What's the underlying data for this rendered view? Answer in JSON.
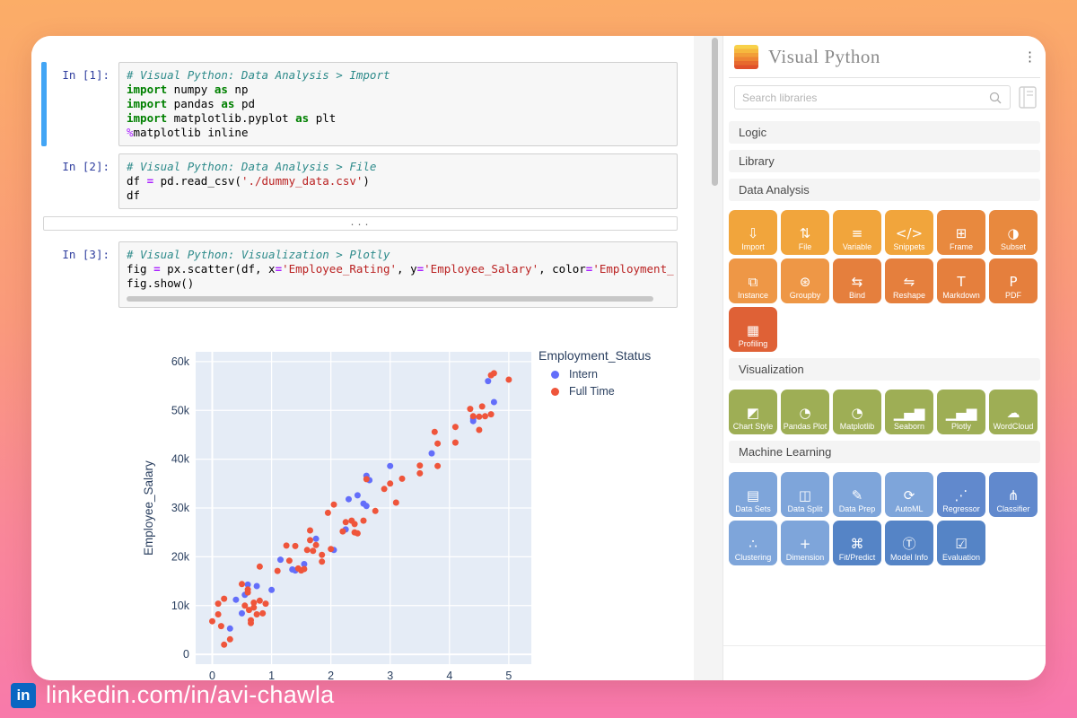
{
  "colors": {
    "background_top": "#FBAD67",
    "background_bottom": "#F877AE",
    "selected_cell_bar": "#42A5F5",
    "linkedin_blue": "#0A66C2",
    "plot_background": "#E5ECF6",
    "intern_blue": "#636EFA",
    "fulltime_red": "#EF553B",
    "plot_text": "#2A3F5F"
  },
  "notebook": {
    "collapsed_output": "...",
    "cells": [
      {
        "prompt": "In [1]:",
        "selected": true,
        "hscroll": false,
        "ellipsis_after": false,
        "lines": [
          [
            [
              "com",
              "# Visual Python: Data Analysis > Import"
            ]
          ],
          [
            [
              "kw",
              "import"
            ],
            [
              "pl",
              " numpy "
            ],
            [
              "kw",
              "as"
            ],
            [
              "pl",
              " np"
            ]
          ],
          [
            [
              "kw",
              "import"
            ],
            [
              "pl",
              " pandas "
            ],
            [
              "kw",
              "as"
            ],
            [
              "pl",
              " pd"
            ]
          ],
          [
            [
              "kw",
              "import"
            ],
            [
              "pl",
              " matplotlib.pyplot "
            ],
            [
              "kw",
              "as"
            ],
            [
              "pl",
              " plt"
            ]
          ],
          [
            [
              "mg",
              "%"
            ],
            [
              "pl",
              "matplotlib inline"
            ]
          ]
        ]
      },
      {
        "prompt": "In [2]:",
        "selected": false,
        "hscroll": false,
        "ellipsis_after": true,
        "lines": [
          [
            [
              "com",
              "# Visual Python: Data Analysis > File"
            ]
          ],
          [
            [
              "pl",
              "df "
            ],
            [
              "op",
              "="
            ],
            [
              "pl",
              " pd.read_csv("
            ],
            [
              "str",
              "'./dummy_data.csv'"
            ],
            [
              "pl",
              ")"
            ]
          ],
          [
            [
              "pl",
              "df"
            ]
          ]
        ]
      },
      {
        "prompt": "In [3]:",
        "selected": false,
        "hscroll": true,
        "ellipsis_after": false,
        "lines": [
          [
            [
              "com",
              "# Visual Python: Visualization > Plotly"
            ]
          ],
          [
            [
              "pl",
              "fig "
            ],
            [
              "op",
              "="
            ],
            [
              "pl",
              " px.scatter(df, x"
            ],
            [
              "op",
              "="
            ],
            [
              "str",
              "'Employee_Rating'"
            ],
            [
              "pl",
              ", y"
            ],
            [
              "op",
              "="
            ],
            [
              "str",
              "'Employee_Salary'"
            ],
            [
              "pl",
              ", color"
            ],
            [
              "op",
              "="
            ],
            [
              "str",
              "'Employment_"
            ]
          ],
          [
            [
              "pl",
              "fig.show()"
            ]
          ]
        ]
      }
    ]
  },
  "chart_data": {
    "type": "scatter",
    "title": "",
    "xlabel": "",
    "ylabel": "Employee_Salary",
    "legend_title": "Employment_Status",
    "legend_position": "top-right-outside",
    "grid": true,
    "y_unit": "thousands",
    "xlim": [
      -0.28,
      5.38
    ],
    "ylim_k": [
      -2,
      62
    ],
    "xticks": [
      0,
      1,
      2,
      3,
      4,
      5
    ],
    "yticks_k": [
      0,
      10,
      20,
      30,
      40,
      50,
      60
    ],
    "ytick_labels": [
      "0",
      "10k",
      "20k",
      "30k",
      "40k",
      "50k",
      "60k"
    ],
    "series": [
      {
        "name": "Intern",
        "color": "#636EFA",
        "points_x_yk": [
          [
            0.3,
            5.3
          ],
          [
            0.4,
            11.2
          ],
          [
            0.5,
            8.4
          ],
          [
            0.55,
            12.2
          ],
          [
            0.6,
            14.3
          ],
          [
            0.75,
            14.0
          ],
          [
            1.0,
            13.2
          ],
          [
            1.15,
            19.4
          ],
          [
            1.35,
            17.4
          ],
          [
            1.4,
            17.2
          ],
          [
            1.55,
            18.5
          ],
          [
            1.75,
            23.7
          ],
          [
            2.05,
            21.4
          ],
          [
            2.25,
            25.6
          ],
          [
            2.3,
            31.8
          ],
          [
            2.45,
            32.6
          ],
          [
            2.55,
            30.9
          ],
          [
            2.6,
            30.4
          ],
          [
            2.6,
            36.6
          ],
          [
            2.65,
            35.7
          ],
          [
            3.0,
            38.6
          ],
          [
            3.7,
            41.2
          ],
          [
            4.4,
            48.3
          ],
          [
            4.4,
            47.8
          ],
          [
            4.65,
            56.0
          ],
          [
            4.75,
            51.7
          ]
        ]
      },
      {
        "name": "Full Time",
        "color": "#EF553B",
        "points_x_yk": [
          [
            0.0,
            6.8
          ],
          [
            0.1,
            8.2
          ],
          [
            0.1,
            10.4
          ],
          [
            0.15,
            5.8
          ],
          [
            0.2,
            11.4
          ],
          [
            0.2,
            2.0
          ],
          [
            0.3,
            3.1
          ],
          [
            0.5,
            14.4
          ],
          [
            0.55,
            10.0
          ],
          [
            0.6,
            13.3
          ],
          [
            0.6,
            12.7
          ],
          [
            0.62,
            9.1
          ],
          [
            0.65,
            7.0
          ],
          [
            0.65,
            6.4
          ],
          [
            0.7,
            10.6
          ],
          [
            0.7,
            9.6
          ],
          [
            0.75,
            8.2
          ],
          [
            0.8,
            18.0
          ],
          [
            0.8,
            11.0
          ],
          [
            0.85,
            8.4
          ],
          [
            0.9,
            10.4
          ],
          [
            1.1,
            17.1
          ],
          [
            1.25,
            22.3
          ],
          [
            1.3,
            19.2
          ],
          [
            1.4,
            22.2
          ],
          [
            1.45,
            17.6
          ],
          [
            1.5,
            17.2
          ],
          [
            1.55,
            17.5
          ],
          [
            1.6,
            21.4
          ],
          [
            1.65,
            25.4
          ],
          [
            1.65,
            23.4
          ],
          [
            1.7,
            21.2
          ],
          [
            1.75,
            22.4
          ],
          [
            1.85,
            20.4
          ],
          [
            1.85,
            19.0
          ],
          [
            1.95,
            29.0
          ],
          [
            2.0,
            21.6
          ],
          [
            2.05,
            30.7
          ],
          [
            2.2,
            25.2
          ],
          [
            2.25,
            27.1
          ],
          [
            2.35,
            27.4
          ],
          [
            2.4,
            26.7
          ],
          [
            2.4,
            25.0
          ],
          [
            2.45,
            24.8
          ],
          [
            2.55,
            27.4
          ],
          [
            2.6,
            35.9
          ],
          [
            2.75,
            29.4
          ],
          [
            2.9,
            33.9
          ],
          [
            3.0,
            35.0
          ],
          [
            3.1,
            31.1
          ],
          [
            3.2,
            36.0
          ],
          [
            3.5,
            38.7
          ],
          [
            3.5,
            37.1
          ],
          [
            3.75,
            45.6
          ],
          [
            3.8,
            38.6
          ],
          [
            3.8,
            43.2
          ],
          [
            4.1,
            46.6
          ],
          [
            4.1,
            43.4
          ],
          [
            4.35,
            50.3
          ],
          [
            4.4,
            48.8
          ],
          [
            4.5,
            48.7
          ],
          [
            4.5,
            46.0
          ],
          [
            4.55,
            50.8
          ],
          [
            4.6,
            48.8
          ],
          [
            4.7,
            49.2
          ],
          [
            4.7,
            57.2
          ],
          [
            4.75,
            57.6
          ],
          [
            5.0,
            56.3
          ]
        ]
      }
    ]
  },
  "panel": {
    "title": "Visual Python",
    "menu_glyph": "⋮",
    "search_placeholder": "Search libraries",
    "sections": [
      {
        "label": "Logic",
        "apps": []
      },
      {
        "label": "Library",
        "apps": []
      },
      {
        "label": "Data Analysis",
        "apps": [
          {
            "label": "Import",
            "icon": "import-download-icon",
            "glyph": "⇩",
            "color": "#F1A53C"
          },
          {
            "label": "File",
            "icon": "file-transfer-icon",
            "glyph": "⇅",
            "color": "#F1A53C"
          },
          {
            "label": "Variable",
            "icon": "variable-list-icon",
            "glyph": "≡",
            "color": "#F1A53C"
          },
          {
            "label": "Snippets",
            "icon": "code-snippets-icon",
            "glyph": "</>",
            "color": "#F1A53C"
          },
          {
            "label": "Frame",
            "icon": "table-frame-icon",
            "glyph": "⊞",
            "color": "#E8893E"
          },
          {
            "label": "Subset",
            "icon": "subset-circle-icon",
            "glyph": "◑",
            "color": "#E8893E"
          },
          {
            "label": "Instance",
            "icon": "instance-blocks-icon",
            "glyph": "⧉",
            "color": "#EE9746"
          },
          {
            "label": "Groupby",
            "icon": "groupby-circles-icon",
            "glyph": "⊛",
            "color": "#EE9746"
          },
          {
            "label": "Bind",
            "icon": "bind-arrows-icon",
            "glyph": "⇆",
            "color": "#E57F3D"
          },
          {
            "label": "Reshape",
            "icon": "reshape-pivot-icon",
            "glyph": "⇋",
            "color": "#E57F3D"
          },
          {
            "label": "Markdown",
            "icon": "markdown-text-icon",
            "glyph": "T",
            "color": "#E57F3D"
          },
          {
            "label": "PDF",
            "icon": "pdf-document-icon",
            "glyph": "P",
            "color": "#E57F3D"
          },
          {
            "label": "Profiling",
            "icon": "profiling-report-icon",
            "glyph": "▦",
            "color": "#DF6136"
          }
        ]
      },
      {
        "label": "Visualization",
        "apps": [
          {
            "label": "Chart Style",
            "icon": "chart-style-paint-icon",
            "glyph": "◩",
            "color": "#9EAE55"
          },
          {
            "label": "Pandas Plot",
            "icon": "pie-chart-icon",
            "glyph": "◔",
            "color": "#9EAE55"
          },
          {
            "label": "Matplotlib",
            "icon": "pie-chart-icon",
            "glyph": "◔",
            "color": "#9EAE55"
          },
          {
            "label": "Seaborn",
            "icon": "bar-chart-icon",
            "glyph": "▁▄▆",
            "color": "#9EAE55"
          },
          {
            "label": "Plotly",
            "icon": "bar-chart-icon",
            "glyph": "▁▄▆",
            "color": "#9EAE55"
          },
          {
            "label": "WordCloud",
            "icon": "word-cloud-icon",
            "glyph": "☁",
            "color": "#9EAE55"
          }
        ]
      },
      {
        "label": "Machine Learning",
        "apps": [
          {
            "label": "Data Sets",
            "icon": "datasets-icon",
            "glyph": "▤",
            "color": "#7EA5DA"
          },
          {
            "label": "Data Split",
            "icon": "data-split-icon",
            "glyph": "◫",
            "color": "#7EA5DA"
          },
          {
            "label": "Data Prep",
            "icon": "data-prep-pencil-icon",
            "glyph": "✎",
            "color": "#7EA5DA"
          },
          {
            "label": "AutoML",
            "icon": "automl-cycle-icon",
            "glyph": "⟳",
            "color": "#7EA5DA"
          },
          {
            "label": "Regressor",
            "icon": "regression-line-icon",
            "glyph": "⋰",
            "color": "#6189CD"
          },
          {
            "label": "Classifier",
            "icon": "classifier-tree-icon",
            "glyph": "⋔",
            "color": "#6189CD"
          },
          {
            "label": "Clustering",
            "icon": "clusters-icon",
            "glyph": "∴",
            "color": "#7EA5DA"
          },
          {
            "label": "Dimension",
            "icon": "dimension-axes-icon",
            "glyph": "+",
            "color": "#7EA5DA"
          },
          {
            "label": "Fit/Predict",
            "icon": "fit-predict-network-icon",
            "glyph": "⌘",
            "color": "#5584C6"
          },
          {
            "label": "Model Info",
            "icon": "model-info-icon",
            "glyph": "Ⓣ",
            "color": "#5584C6"
          },
          {
            "label": "Evaluation",
            "icon": "evaluation-checklist-icon",
            "glyph": "☑",
            "color": "#5584C6"
          }
        ]
      }
    ]
  },
  "footer": {
    "logo_text": "in",
    "handle": "linkedin.com/in/avi-chawla"
  }
}
